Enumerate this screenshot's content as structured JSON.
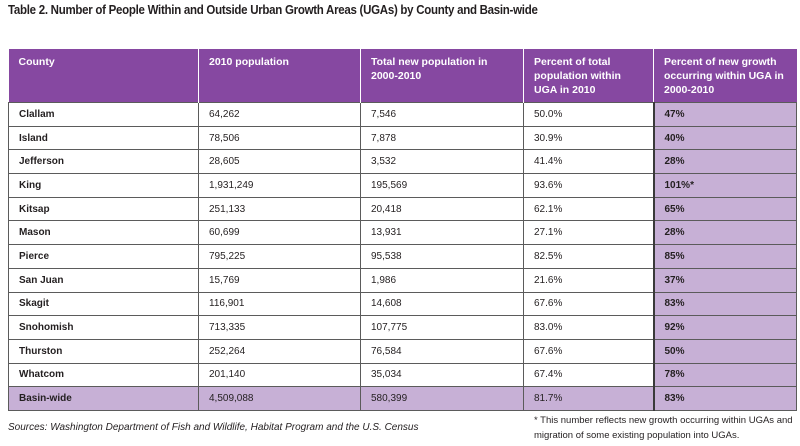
{
  "title": "Table 2. Number of People Within and Outside Urban Growth Areas (UGAs) by County and Basin-wide",
  "headers": [
    "County",
    "2010 population",
    "Total new population in 2000-2010",
    "Percent of total population within UGA in 2010",
    "Percent of new growth occurring within UGA in 2000-2010"
  ],
  "rows": [
    {
      "county": "Clallam",
      "pop2010": "64,262",
      "new_pop": "7,546",
      "pct_total": "50.0%",
      "pct_new": "47%"
    },
    {
      "county": "Island",
      "pop2010": "78,506",
      "new_pop": "7,878",
      "pct_total": "30.9%",
      "pct_new": "40%"
    },
    {
      "county": "Jefferson",
      "pop2010": "28,605",
      "new_pop": "3,532",
      "pct_total": "41.4%",
      "pct_new": "28%"
    },
    {
      "county": "King",
      "pop2010": "1,931,249",
      "new_pop": "195,569",
      "pct_total": "93.6%",
      "pct_new": "101%*"
    },
    {
      "county": "Kitsap",
      "pop2010": "251,133",
      "new_pop": "20,418",
      "pct_total": "62.1%",
      "pct_new": "65%"
    },
    {
      "county": "Mason",
      "pop2010": "60,699",
      "new_pop": "13,931",
      "pct_total": "27.1%",
      "pct_new": "28%"
    },
    {
      "county": "Pierce",
      "pop2010": "795,225",
      "new_pop": "95,538",
      "pct_total": "82.5%",
      "pct_new": "85%"
    },
    {
      "county": "San Juan",
      "pop2010": "15,769",
      "new_pop": "1,986",
      "pct_total": "21.6%",
      "pct_new": "37%"
    },
    {
      "county": "Skagit",
      "pop2010": "116,901",
      "new_pop": "14,608",
      "pct_total": "67.6%",
      "pct_new": "83%"
    },
    {
      "county": "Snohomish",
      "pop2010": "713,335",
      "new_pop": "107,775",
      "pct_total": "83.0%",
      "pct_new": "92%"
    },
    {
      "county": "Thurston",
      "pop2010": "252,264",
      "new_pop": "76,584",
      "pct_total": "67.6%",
      "pct_new": "50%"
    },
    {
      "county": "Whatcom",
      "pop2010": "201,140",
      "new_pop": "35,034",
      "pct_total": "67.4%",
      "pct_new": "78%"
    }
  ],
  "total": {
    "county": "Basin-wide",
    "pop2010": "4,509,088",
    "new_pop": "580,399",
    "pct_total": "81.7%",
    "pct_new": "83%"
  },
  "sources": "Sources: Washington Department of Fish and Wildlife, Habitat Program and the U.S. Census",
  "footnote": "* This number reflects new growth occurring within UGAs and migration of some existing population into UGAs.",
  "colors": {
    "header_bg": "#8648a1",
    "highlight_bg": "#c7b0d6",
    "header_text": "#ffffff"
  }
}
